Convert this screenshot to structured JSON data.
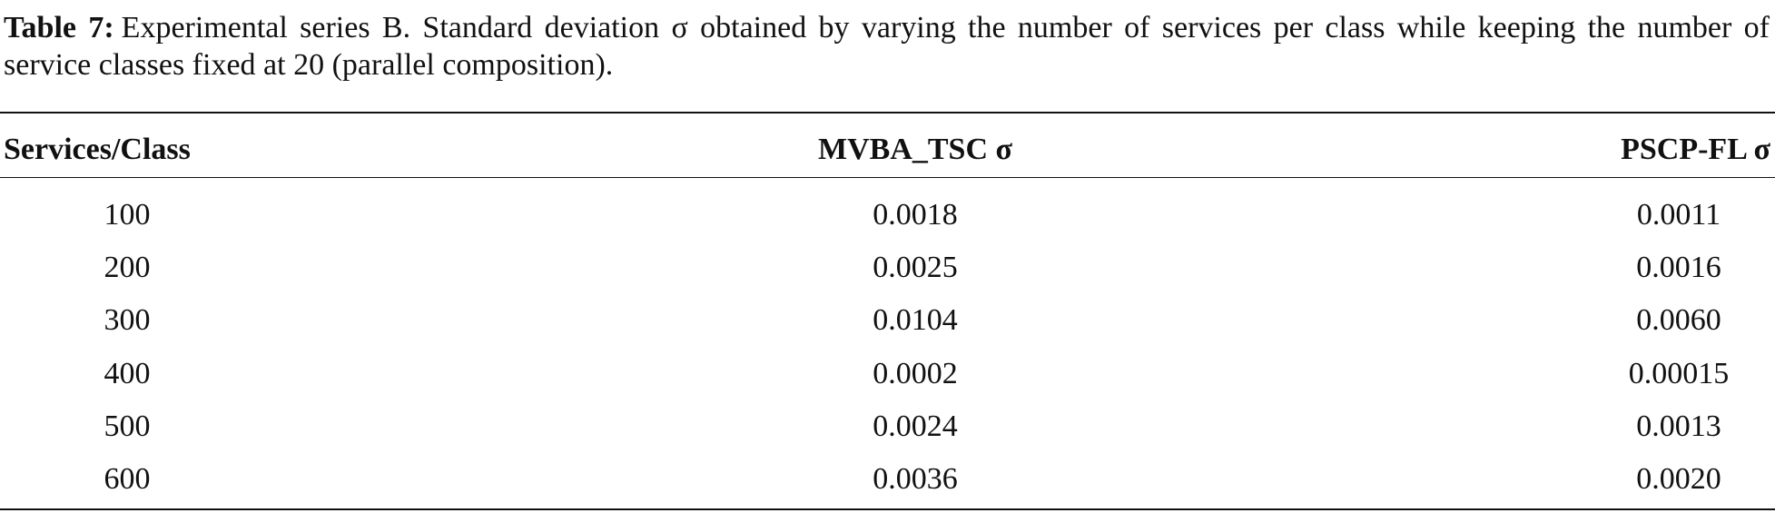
{
  "caption": {
    "label": "Table 7:",
    "text": "Experimental series B. Standard deviation σ obtained by varying the number of services per class while keeping the number of service classes fixed at 20 (parallel composition)."
  },
  "table": {
    "header": [
      "Services/Class",
      "MVBA_TSC σ",
      "PSCP-FL σ"
    ],
    "rows": [
      [
        "100",
        "0.0018",
        "0.0011"
      ],
      [
        "200",
        "0.0025",
        "0.0016"
      ],
      [
        "300",
        "0.0104",
        "0.0060"
      ],
      [
        "400",
        "0.0002",
        "0.00015"
      ],
      [
        "500",
        "0.0024",
        "0.0013"
      ],
      [
        "600",
        "0.0036",
        "0.0020"
      ]
    ]
  }
}
